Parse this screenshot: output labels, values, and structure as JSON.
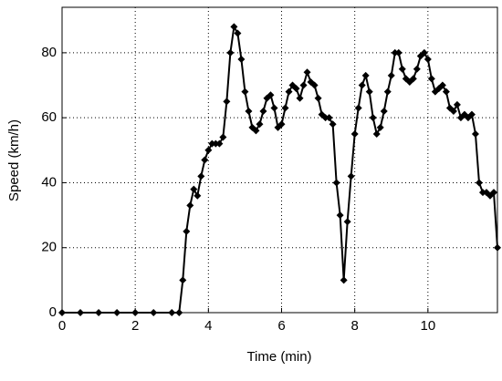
{
  "chart_data": {
    "type": "line",
    "x_label": "Time (min)",
    "y_label": "Speed (km/h)",
    "x": [
      0,
      0.5,
      1,
      1.5,
      2,
      2.5,
      3,
      3.2,
      3.3,
      3.4,
      3.5,
      3.6,
      3.7,
      3.8,
      3.9,
      4.0,
      4.1,
      4.2,
      4.3,
      4.4,
      4.5,
      4.6,
      4.7,
      4.8,
      4.9,
      5.0,
      5.1,
      5.2,
      5.3,
      5.4,
      5.5,
      5.6,
      5.7,
      5.8,
      5.9,
      6.0,
      6.1,
      6.2,
      6.3,
      6.4,
      6.5,
      6.6,
      6.7,
      6.8,
      6.9,
      7.0,
      7.1,
      7.2,
      7.3,
      7.4,
      7.5,
      7.6,
      7.7,
      7.8,
      7.9,
      8.0,
      8.1,
      8.2,
      8.3,
      8.4,
      8.5,
      8.6,
      8.7,
      8.8,
      8.9,
      9.0,
      9.1,
      9.2,
      9.3,
      9.4,
      9.5,
      9.6,
      9.7,
      9.8,
      9.9,
      10.0,
      10.1,
      10.2,
      10.3,
      10.4,
      10.5,
      10.6,
      10.7,
      10.8,
      10.9,
      11.0,
      11.1,
      11.2,
      11.3,
      11.4,
      11.5,
      11.6,
      11.7,
      11.8,
      11.9
    ],
    "series": [
      {
        "color": "#000000",
        "values": [
          0,
          0,
          0,
          0,
          0,
          0,
          0,
          0,
          10,
          25,
          33,
          38,
          36,
          42,
          47,
          50,
          52,
          52,
          52,
          54,
          65,
          80,
          88,
          86,
          78,
          68,
          62,
          57,
          56,
          58,
          62,
          66,
          67,
          63,
          57,
          58,
          63,
          68,
          70,
          69,
          66,
          70,
          74,
          71,
          70,
          66,
          61,
          60,
          60,
          58,
          40,
          30,
          10,
          28,
          42,
          55,
          63,
          70,
          73,
          68,
          60,
          55,
          57,
          62,
          68,
          73,
          80,
          80,
          75,
          72,
          71,
          72,
          75,
          79,
          80,
          78,
          72,
          68,
          69,
          70,
          68,
          63,
          62,
          64,
          60,
          61,
          60,
          61,
          55,
          40,
          37,
          37,
          36,
          37,
          20
        ]
      }
    ],
    "xlim": [
      0,
      11.9
    ],
    "ylim": [
      0,
      94
    ],
    "xticks": [
      0,
      2,
      4,
      6,
      8,
      10
    ],
    "yticks": [
      0,
      20,
      40,
      60,
      80
    ],
    "grid": true
  }
}
